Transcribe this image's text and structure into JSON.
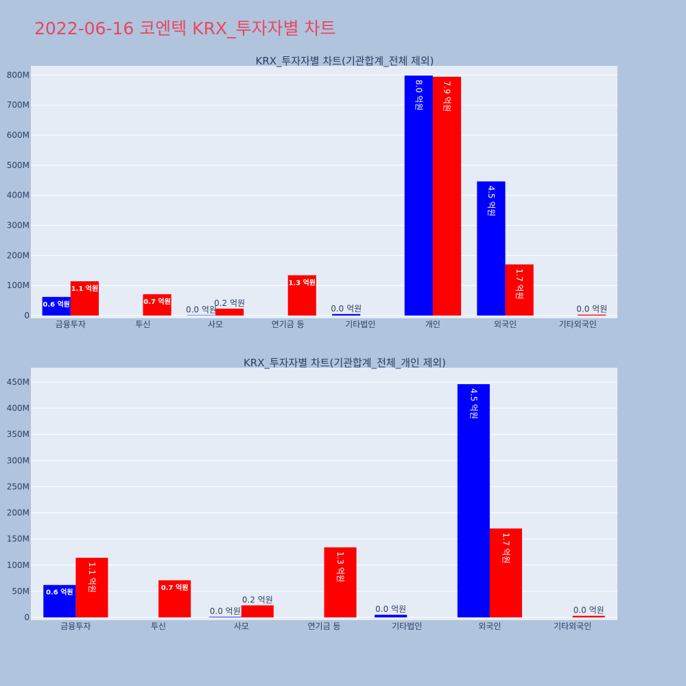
{
  "title": "2022-06-16 코엔텍 KRX_투자자별 차트",
  "colors": {
    "buy": "#0000ff",
    "sell": "#ff0000",
    "title": "#e8475f",
    "plot_bg": "#e5ecf6",
    "page_bg": "#b0c4de"
  },
  "chart_data": [
    {
      "type": "bar",
      "title": "KRX_투자자별 차트(기관합계_전체 제외)",
      "categories": [
        "금융투자",
        "투신",
        "사모",
        "연기금 등",
        "기타법인",
        "개인",
        "외국인",
        "기타외국인"
      ],
      "series": [
        {
          "values": [
            62000000,
            0,
            1000000,
            0,
            5000000,
            798000000,
            446000000,
            0
          ],
          "labels": [
            "0.6 억원",
            "",
            "0.0 억원",
            "",
            "0.0 억원",
            "8.0 억원",
            "4.5 억원",
            ""
          ]
        },
        {
          "values": [
            114000000,
            71000000,
            23000000,
            134000000,
            0,
            794000000,
            170000000,
            3000000
          ],
          "labels": [
            "1.1 억원",
            "0.7 억원",
            "0.2 억원",
            "1.3 억원",
            "",
            "7.9 억원",
            "1.7 억원",
            "0.0 억원"
          ]
        }
      ],
      "ylim": [
        0,
        812000000
      ],
      "yticks": [
        0,
        100000000,
        200000000,
        300000000,
        400000000,
        500000000,
        600000000,
        700000000,
        800000000
      ],
      "yticklabels": [
        "0",
        "100M",
        "200M",
        "300M",
        "400M",
        "500M",
        "600M",
        "700M",
        "800M"
      ],
      "grid": true,
      "xlabel": "",
      "ylabel": ""
    },
    {
      "type": "bar",
      "title": "KRX_투자자별 차트(기관합계_전체_개인 제외)",
      "categories": [
        "금융투자",
        "투신",
        "사모",
        "연기금 등",
        "기타법인",
        "외국인",
        "기타외국인"
      ],
      "series": [
        {
          "values": [
            62000000,
            0,
            1000000,
            0,
            5000000,
            446000000,
            0
          ],
          "labels": [
            "0.6 억원",
            "",
            "0.0 억원",
            "",
            "0.0 억원",
            "4.5 억원",
            ""
          ]
        },
        {
          "values": [
            114000000,
            71000000,
            23000000,
            134000000,
            0,
            170000000,
            3000000
          ],
          "labels": [
            "1.1 억원",
            "0.7 억원",
            "0.2 억원",
            "1.3 억원",
            "",
            "1.7 억원",
            "0.0 억원"
          ]
        }
      ],
      "ylim": [
        0,
        467000000
      ],
      "yticks": [
        0,
        50000000,
        100000000,
        150000000,
        200000000,
        250000000,
        300000000,
        350000000,
        400000000,
        450000000
      ],
      "yticklabels": [
        "0",
        "50M",
        "100M",
        "150M",
        "200M",
        "250M",
        "300M",
        "350M",
        "400M",
        "450M"
      ],
      "grid": true,
      "xlabel": "",
      "ylabel": ""
    }
  ]
}
